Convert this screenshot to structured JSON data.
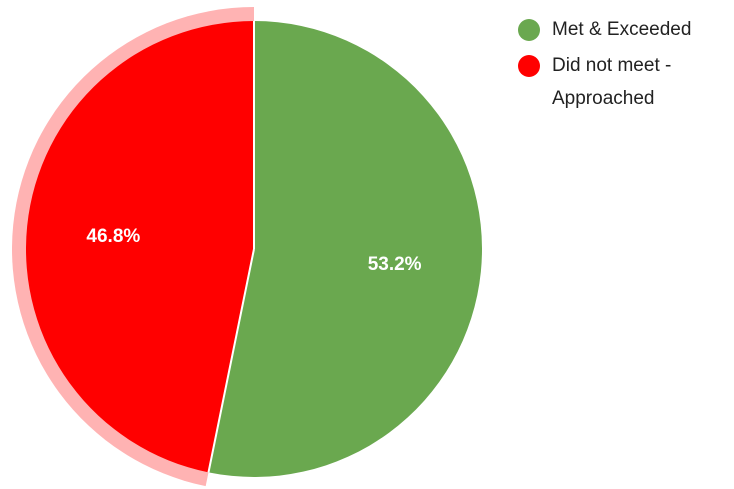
{
  "chart_data": {
    "type": "pie",
    "categories": [
      "Met & Exceeded",
      "Did not meet - Approached"
    ],
    "values": [
      53.2,
      46.8
    ],
    "colors": [
      "#6aa84f",
      "#ff0000"
    ],
    "highlight_color": "#ffb3b3",
    "highlighted_slice": 1,
    "labels": [
      "53.2%",
      "46.8%"
    ],
    "legend": [
      {
        "label": "Met & Exceeded",
        "color": "#6aa84f"
      },
      {
        "label": "Did not meet - Approached",
        "color": "#ff0000"
      }
    ],
    "title": "",
    "legend_position": "right"
  }
}
